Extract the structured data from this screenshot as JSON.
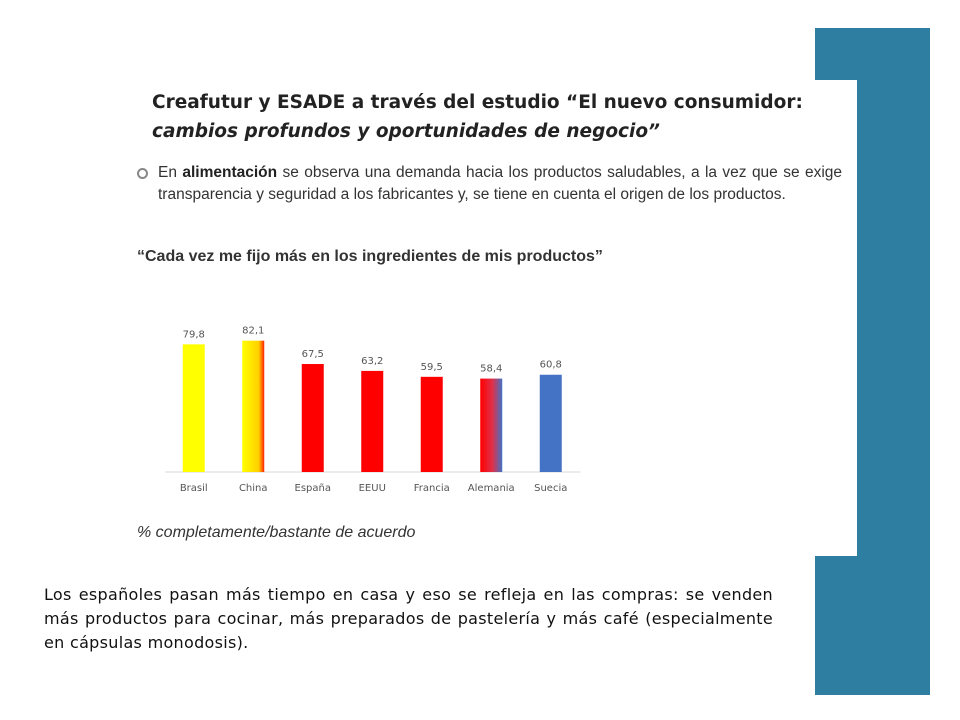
{
  "theme": {
    "accent": "#2e7ea1"
  },
  "heading": {
    "line1": "Creafutur y ESADE a través del estudio “El nuevo consumidor:",
    "line2": "cambios profundos y oportunidades de negocio”"
  },
  "bullet": {
    "text_before": "En ",
    "emphasis": "alimentación",
    "text_after": " se observa una demanda hacia los productos saludables, a la vez que se exige transparencia y seguridad a los fabricantes y, se tiene en cuenta el origen de los productos."
  },
  "quote": "“Cada vez me fijo más en los ingredientes de mis productos”",
  "chart_data": {
    "type": "bar",
    "title": "",
    "xlabel": "",
    "ylabel": "",
    "categories": [
      "Brasil",
      "China",
      "España",
      "EEUU",
      "Francia",
      "Alemania",
      "Suecia"
    ],
    "values": [
      79.8,
      82.1,
      67.5,
      63.2,
      59.5,
      58.4,
      60.8
    ],
    "value_labels": [
      "79,8",
      "82,1",
      "67,5",
      "63,2",
      "59,5",
      "58,4",
      "60,8"
    ],
    "bar_colors": [
      "#ffff00",
      "#ffd700",
      "#ff0000",
      "#ff0000",
      "#ff0000",
      "#ff0000",
      "#4472c4"
    ],
    "ylim": [
      0,
      100
    ],
    "grid": false,
    "legend": "none"
  },
  "footnote": "% completamente/bastante de acuerdo",
  "body_text": "Los españoles pasan más tiempo en casa y eso se refleja en las compras: se venden más productos para cocinar, más preparados de pastelería y más café (especialmente en cápsulas monodosis)."
}
